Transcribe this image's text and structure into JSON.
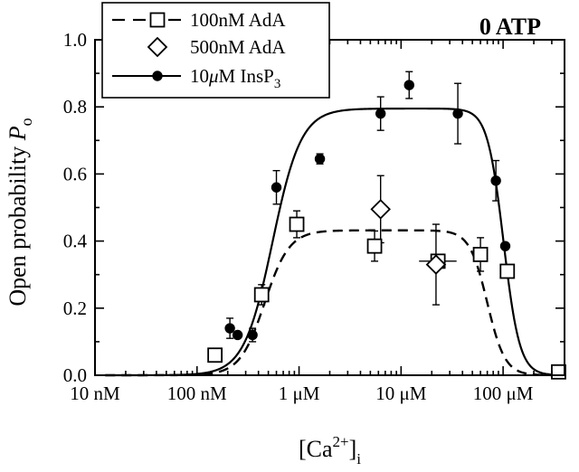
{
  "chart_data": {
    "type": "scatter",
    "title": "0 ATP",
    "xlabel": "[Ca2+]i",
    "ylabel": "Open probability Po",
    "xscale": "log",
    "xlim": [
      1e-08,
      0.0004
    ],
    "ylim": [
      0,
      1.0
    ],
    "x_ticks": [
      1e-08,
      1e-07,
      1e-06,
      1e-05,
      0.0001
    ],
    "x_tick_labels": [
      "10 nM",
      "100 nM",
      "1 μM",
      "10 μM",
      "100 μM"
    ],
    "y_ticks": [
      0,
      0.2,
      0.4,
      0.6,
      0.8,
      1.0
    ],
    "y_tick_labels": [
      "0.0",
      "0.2",
      "0.4",
      "0.6",
      "0.8",
      "1.0"
    ],
    "legend_position": "top-left",
    "series": [
      {
        "name": "100nM AdA",
        "marker": "open-square",
        "line": "dashed",
        "points": [
          {
            "x": 1.5e-07,
            "y": 0.06
          },
          {
            "x": 4.3e-07,
            "y": 0.24,
            "yerr": 0.03
          },
          {
            "x": 9.5e-07,
            "y": 0.45,
            "yerr": 0.04
          },
          {
            "x": 5.5e-06,
            "y": 0.385,
            "yerr": 0.045
          },
          {
            "x": 2.3e-05,
            "y": 0.34,
            "yerr": 0.02,
            "xerr_low": 1.5e-05,
            "xerr_high": 3.5e-05
          },
          {
            "x": 6e-05,
            "y": 0.36,
            "yerr": 0.05
          },
          {
            "x": 0.00011,
            "y": 0.31
          },
          {
            "x": 0.00035,
            "y": 0.01
          }
        ]
      },
      {
        "name": "500nM AdA",
        "marker": "open-diamond",
        "points": [
          {
            "x": 6.3e-06,
            "y": 0.495,
            "yerr": 0.1
          },
          {
            "x": 2.2e-05,
            "y": 0.33,
            "yerr": 0.12
          }
        ]
      },
      {
        "name": "10μM InsP3",
        "marker": "filled-circle",
        "line": "solid",
        "points": [
          {
            "x": 2.1e-07,
            "y": 0.14,
            "yerr": 0.03
          },
          {
            "x": 2.5e-07,
            "y": 0.12
          },
          {
            "x": 3.5e-07,
            "y": 0.12,
            "yerr": 0.02
          },
          {
            "x": 6e-07,
            "y": 0.56,
            "yerr": 0.05
          },
          {
            "x": 1.6e-06,
            "y": 0.645,
            "yerr": 0.015
          },
          {
            "x": 6.3e-06,
            "y": 0.78,
            "yerr": 0.05
          },
          {
            "x": 1.2e-05,
            "y": 0.865,
            "yerr": 0.04
          },
          {
            "x": 3.6e-05,
            "y": 0.78,
            "yerr": 0.09
          },
          {
            "x": 8.5e-05,
            "y": 0.58,
            "yerr": 0.06
          },
          {
            "x": 0.000105,
            "y": 0.385
          }
        ]
      }
    ]
  }
}
